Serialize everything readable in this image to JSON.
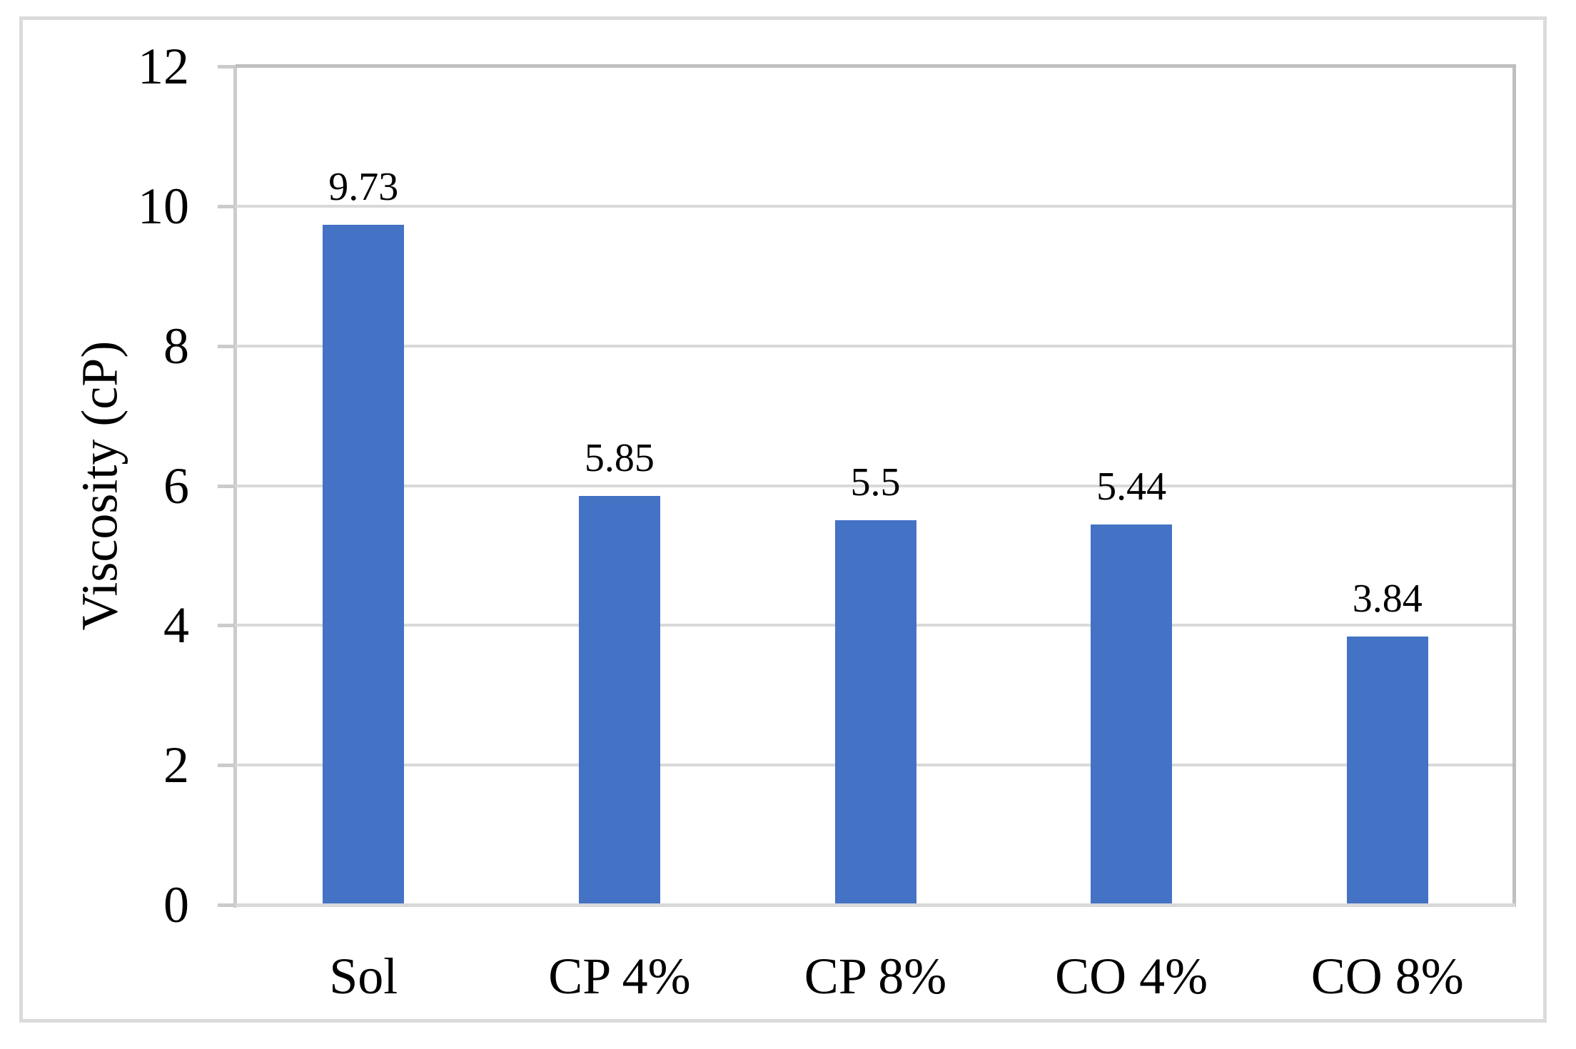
{
  "chart_data": {
    "type": "bar",
    "categories": [
      "Sol",
      "CP 4%",
      "CP 8%",
      "CO 4%",
      "CO 8%"
    ],
    "values": [
      9.73,
      5.85,
      5.5,
      5.44,
      3.84
    ],
    "value_labels": [
      "9.73",
      "5.85",
      "5.5",
      "5.44",
      "3.84"
    ],
    "ylabel": "Viscosity (cP)",
    "ylim": [
      0,
      12
    ],
    "yticks": [
      0,
      2,
      4,
      6,
      8,
      10,
      12
    ],
    "grid": true,
    "legend_position": "none",
    "colors": {
      "bar": "#4472C4",
      "gridline": "#D9D9D9",
      "axis_line": "#CCCBCB",
      "plot_border": "#BFBFBF",
      "figure_border": "#DBDBDB",
      "text": "#000000"
    }
  }
}
